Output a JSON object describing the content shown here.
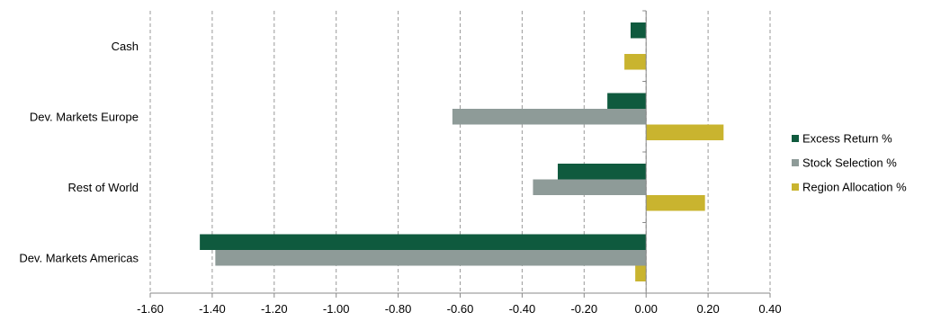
{
  "chart_data": {
    "type": "bar",
    "orientation": "horizontal",
    "categories": [
      "Cash",
      "Dev. Markets Europe",
      "Rest of World",
      "Dev. Markets Americas"
    ],
    "series": [
      {
        "name": "Excess Return %",
        "color": "#0f5a3e",
        "values": [
          -0.05,
          -0.125,
          -0.285,
          -1.44
        ]
      },
      {
        "name": "Stock Selection %",
        "color": "#8e9b98",
        "values": [
          0.0,
          -0.625,
          -0.365,
          -1.39
        ]
      },
      {
        "name": "Region Allocation %",
        "color": "#c9b42f",
        "values": [
          -0.07,
          0.25,
          0.19,
          -0.035
        ]
      }
    ],
    "xlim": [
      -1.6,
      0.4
    ],
    "xticks": [
      "-1.60",
      "-1.40",
      "-1.20",
      "-1.00",
      "-0.80",
      "-0.60",
      "-0.40",
      "-0.20",
      "0.00",
      "0.20",
      "0.40"
    ],
    "xtick_values": [
      -1.6,
      -1.4,
      -1.2,
      -1.0,
      -0.8,
      -0.6,
      -0.4,
      -0.2,
      0.0,
      0.2,
      0.4
    ],
    "grid": "vertical-dashed",
    "legend_position": "right",
    "title": "",
    "xlabel": "",
    "ylabel": ""
  }
}
